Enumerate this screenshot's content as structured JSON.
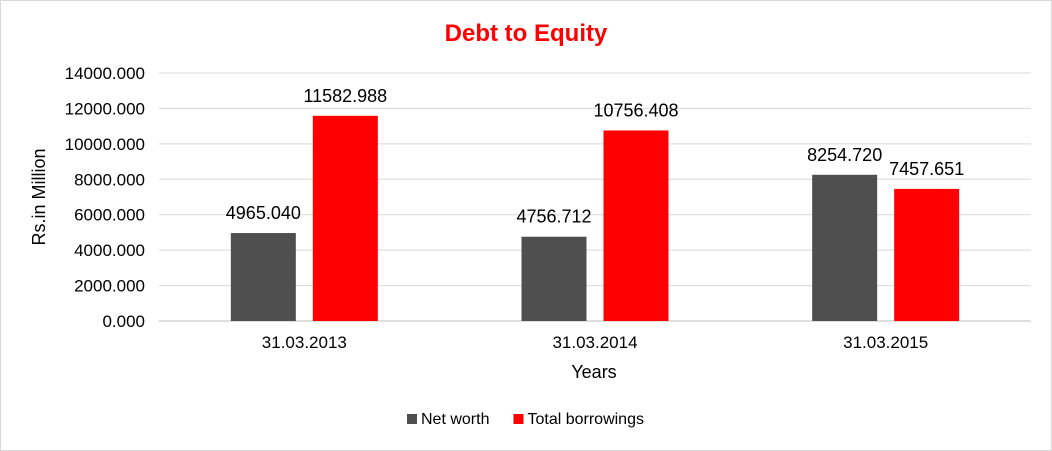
{
  "colors": {
    "title": "#ff0000",
    "net_worth": "#4f4f4f",
    "total_borrowings": "#ff0000"
  },
  "chart_data": {
    "type": "bar",
    "title": "Debt to Equity",
    "xlabel": "Years",
    "ylabel": "Rs.in Million",
    "categories": [
      "31.03.2013",
      "31.03.2014",
      "31.03.2015"
    ],
    "series": [
      {
        "name": "Net worth",
        "values": [
          4965.04,
          4756.712,
          8254.72
        ],
        "labels": [
          "4965.040",
          "4756.712",
          "8254.720"
        ]
      },
      {
        "name": "Total borrowings",
        "values": [
          11582.988,
          10756.408,
          7457.651
        ],
        "labels": [
          "11582.988",
          "10756.408",
          "7457.651"
        ]
      }
    ],
    "ylim": [
      0,
      14000
    ],
    "yticks": [
      0,
      2000,
      4000,
      6000,
      8000,
      10000,
      12000,
      14000
    ],
    "ytick_labels": [
      "0.000",
      "2000.000",
      "4000.000",
      "6000.000",
      "8000.000",
      "10000.000",
      "12000.000",
      "14000.000"
    ],
    "grid": true,
    "legend": "bottom"
  }
}
